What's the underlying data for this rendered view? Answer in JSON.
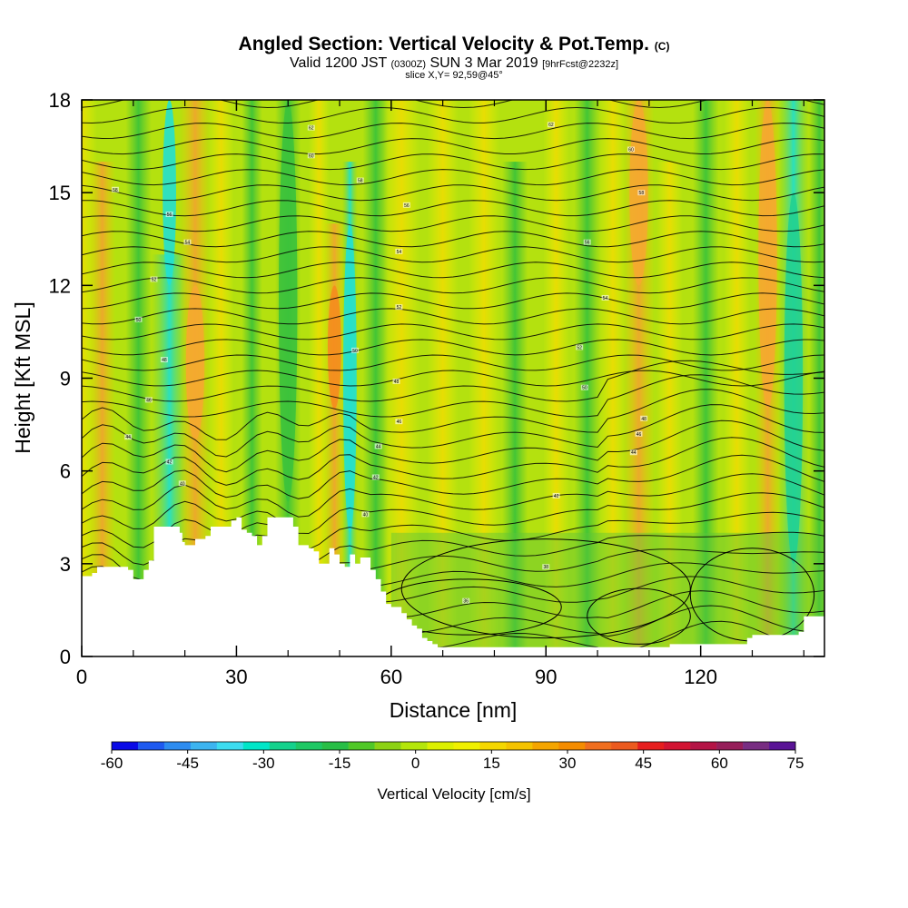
{
  "header": {
    "title": "Angled Section: Vertical Velocity & Pot.Temp.",
    "title_suffix": "(C)",
    "valid_prefix": "Valid 1200 JST",
    "valid_zulu": "(0300Z)",
    "valid_date": "SUN 3 Mar 2019",
    "valid_forecast": "[9hrFcst@2232z]",
    "slice": "slice X,Y= 92,59@45°"
  },
  "chart_data": {
    "type": "heatmap",
    "xlabel": "Distance [nm]",
    "ylabel": "Height [Kft MSL]",
    "xlim": [
      0,
      144
    ],
    "ylim": [
      0,
      18
    ],
    "xticks": [
      "0",
      "30",
      "60",
      "90",
      "120"
    ],
    "xtick_values": [
      0,
      30,
      60,
      90,
      120
    ],
    "yticks": [
      "0",
      "3",
      "6",
      "9",
      "12",
      "15",
      "18"
    ],
    "ytick_values": [
      0,
      3,
      6,
      9,
      12,
      15,
      18
    ],
    "minor_x_ticks": [
      10,
      20,
      40,
      50,
      70,
      80,
      100,
      110,
      130,
      140
    ],
    "colorbar": {
      "label": "Vertical Velocity [cm/s]",
      "min": -60,
      "max": 75,
      "step": 5,
      "ticks": [
        "-60",
        "-45",
        "-30",
        "-15",
        "0",
        "15",
        "30",
        "45",
        "60",
        "75"
      ],
      "colors": [
        "#0a0ae6",
        "#1e5af0",
        "#2d8cf0",
        "#3cb4f0",
        "#3cdcf0",
        "#00e6c8",
        "#14d28c",
        "#1ec864",
        "#28be46",
        "#50c828",
        "#8cd214",
        "#b4e60a",
        "#dcf000",
        "#f0f000",
        "#f5d700",
        "#f5c300",
        "#f5a500",
        "#f58c00",
        "#f06e1e",
        "#eb5a1e",
        "#e61e1e",
        "#d21432",
        "#b41446",
        "#961e5a",
        "#782d82",
        "#5a1496"
      ]
    },
    "field_features": [
      {
        "type": "downdraft",
        "x": 17,
        "ymin": 12,
        "ymax": 18,
        "peak": -35
      },
      {
        "type": "downdraft",
        "x": 40,
        "ymin": 5,
        "ymax": 18,
        "peak": -15
      },
      {
        "type": "downdraft",
        "x": 52,
        "ymin": 4,
        "ymax": 14,
        "peak": -30
      },
      {
        "type": "downdraft",
        "x": 138,
        "ymin": 3,
        "ymax": 15,
        "peak": -25
      },
      {
        "type": "updraft",
        "x": 22,
        "ymin": 7,
        "ymax": 12,
        "peak": 25
      },
      {
        "type": "updraft",
        "x": 49,
        "ymin": 8,
        "ymax": 12,
        "peak": 30
      },
      {
        "type": "updraft",
        "x": 133,
        "ymin": 8,
        "ymax": 18,
        "peak": 25
      },
      {
        "type": "updraft",
        "x": 108,
        "ymin": 12,
        "ymax": 18,
        "peak": 20
      }
    ],
    "contour_labels": [
      {
        "text": "58",
        "x": 6.5,
        "y": 15.1
      },
      {
        "text": "56",
        "x": 17,
        "y": 14.3
      },
      {
        "text": "54",
        "x": 20.5,
        "y": 13.4
      },
      {
        "text": "52",
        "x": 14,
        "y": 12.2
      },
      {
        "text": "50",
        "x": 11,
        "y": 10.9
      },
      {
        "text": "48",
        "x": 16,
        "y": 9.6
      },
      {
        "text": "46",
        "x": 13,
        "y": 8.3
      },
      {
        "text": "44",
        "x": 9,
        "y": 7.1
      },
      {
        "text": "42",
        "x": 17,
        "y": 6.3
      },
      {
        "text": "40",
        "x": 19.5,
        "y": 5.6
      },
      {
        "text": "62",
        "x": 44.5,
        "y": 17.1
      },
      {
        "text": "60",
        "x": 44.5,
        "y": 16.2
      },
      {
        "text": "58",
        "x": 54,
        "y": 15.4
      },
      {
        "text": "56",
        "x": 63,
        "y": 14.6
      },
      {
        "text": "54",
        "x": 61.5,
        "y": 13.1
      },
      {
        "text": "52",
        "x": 61.5,
        "y": 11.3
      },
      {
        "text": "50",
        "x": 53,
        "y": 9.9
      },
      {
        "text": "48",
        "x": 61,
        "y": 8.9
      },
      {
        "text": "46",
        "x": 61.5,
        "y": 7.6
      },
      {
        "text": "44",
        "x": 57.5,
        "y": 6.8
      },
      {
        "text": "42",
        "x": 57,
        "y": 5.8
      },
      {
        "text": "40",
        "x": 55,
        "y": 4.6
      },
      {
        "text": "62",
        "x": 91,
        "y": 17.2
      },
      {
        "text": "60",
        "x": 106.5,
        "y": 16.4
      },
      {
        "text": "58",
        "x": 108.5,
        "y": 15.0
      },
      {
        "text": "56",
        "x": 98,
        "y": 13.4
      },
      {
        "text": "54",
        "x": 101.5,
        "y": 11.6
      },
      {
        "text": "52",
        "x": 96.5,
        "y": 10.0
      },
      {
        "text": "50",
        "x": 97.5,
        "y": 8.7
      },
      {
        "text": "48",
        "x": 109,
        "y": 7.7
      },
      {
        "text": "46",
        "x": 108,
        "y": 7.2
      },
      {
        "text": "44",
        "x": 107,
        "y": 6.6
      },
      {
        "text": "42",
        "x": 92,
        "y": 5.2
      },
      {
        "text": "38",
        "x": 90,
        "y": 2.9
      },
      {
        "text": "36",
        "x": 74.5,
        "y": 1.8
      }
    ],
    "terrain_profile": {
      "x": [
        0,
        2,
        3,
        8,
        9,
        10,
        12,
        13,
        14,
        15,
        18,
        19,
        19.5,
        20,
        21,
        22,
        24,
        25,
        26,
        28,
        29,
        30,
        31,
        32,
        33,
        34,
        35,
        36,
        38,
        40,
        41,
        42,
        44,
        45,
        46,
        47,
        48,
        49,
        50,
        51,
        52,
        53,
        54,
        55,
        56,
        57,
        58,
        59,
        60,
        61,
        62,
        63,
        64,
        65,
        66,
        67,
        68,
        69,
        70,
        80,
        100,
        113,
        114,
        115,
        128,
        129,
        130,
        139,
        140,
        144
      ],
      "height_kft": [
        2.6,
        2.7,
        2.9,
        2.9,
        2.8,
        2.5,
        2.8,
        3.1,
        4.2,
        4.2,
        4.2,
        4.0,
        3.7,
        3.6,
        3.6,
        3.8,
        3.9,
        4.2,
        4.2,
        4.2,
        4.4,
        4.5,
        4.1,
        4.0,
        3.9,
        3.6,
        3.9,
        4.5,
        4.5,
        4.5,
        4.2,
        3.6,
        3.5,
        3.4,
        3.0,
        3.0,
        3.5,
        3.3,
        3.0,
        2.9,
        3.3,
        3.0,
        3.2,
        3.2,
        2.8,
        2.5,
        2.1,
        1.7,
        1.6,
        1.6,
        1.4,
        1.2,
        1.0,
        0.9,
        0.6,
        0.5,
        0.4,
        0.3,
        0.3,
        0.3,
        0.3,
        0.3,
        0.4,
        0.4,
        0.4,
        0.6,
        0.7,
        0.8,
        1.3,
        1.3
      ]
    }
  }
}
